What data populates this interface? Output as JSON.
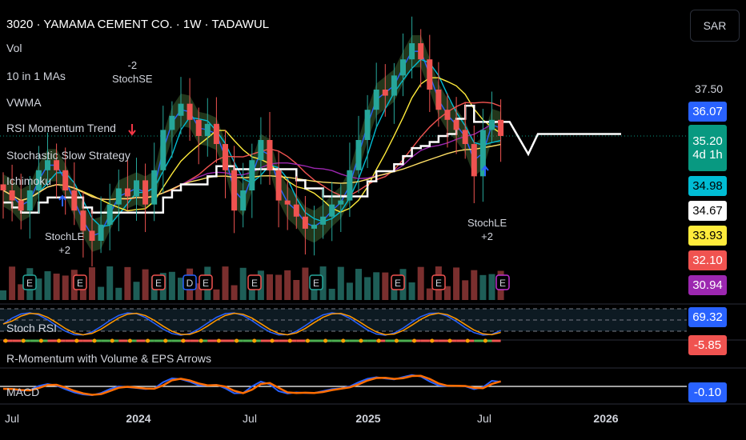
{
  "header": {
    "title": "3020 · YAMAMA CEMENT CO. · 1W · TADAWUL",
    "currency_button": "SAR"
  },
  "legend": [
    "Vol",
    "10 in 1 MAs",
    "VWMA",
    "RSI Momentum Trend",
    "Stochastic Slow Strategy",
    "Ichimoku"
  ],
  "panes": {
    "stoch_rsi": "Stoch RSI",
    "momentum": "R-Momentum with Volume & EPS Arrows",
    "macd": "MACD"
  },
  "signals": [
    {
      "top": "-2",
      "bottom": "StochSE"
    },
    {
      "top": "StochLE",
      "bottom": "+2"
    },
    {
      "top": "StochLE",
      "bottom": "+2"
    }
  ],
  "price_tags": [
    {
      "value": "36.07",
      "color": "#2962ff",
      "text": "#fff"
    },
    {
      "value": "35.20",
      "sub": "4d 1h",
      "color": "#089981",
      "text": "#fff"
    },
    {
      "value": "34.98",
      "color": "#00bcd4",
      "text": "#000"
    },
    {
      "value": "34.67",
      "color": "#ffffff",
      "text": "#000"
    },
    {
      "value": "33.93",
      "color": "#ffeb3b",
      "text": "#000"
    },
    {
      "value": "32.10",
      "color": "#f05350",
      "text": "#fff"
    },
    {
      "value": "30.94",
      "color": "#9c27b0",
      "text": "#fff"
    },
    {
      "value": "69.32",
      "color": "#2962ff",
      "text": "#fff"
    },
    {
      "value": "-5.85",
      "color": "#f05350",
      "text": "#fff"
    },
    {
      "value": "-0.10",
      "color": "#2962ff",
      "text": "#fff"
    }
  ],
  "chart_data": {
    "type": "candlestick",
    "title": "3020 · YAMAMA CEMENT CO. · 1W · TADAWUL",
    "y_axis_label_visible": "37.50",
    "ylim": [
      28.6,
      42.0
    ],
    "x_ticks": [
      "Jul",
      "2024",
      "Jul",
      "2025",
      "Jul",
      "2026"
    ],
    "closes": [
      32.5,
      32.0,
      31.5,
      32.5,
      33.5,
      34.0,
      33.5,
      32.5,
      31.5,
      30.5,
      30.0,
      30.8,
      31.8,
      32.6,
      32.2,
      33.0,
      31.8,
      33.5,
      35.5,
      36.2,
      36.8,
      36.0,
      35.2,
      35.8,
      34.8,
      33.5,
      31.5,
      32.5,
      34.0,
      35.0,
      33.5,
      32.0,
      31.8,
      31.2,
      30.6,
      30.8,
      31.2,
      31.8,
      32.0,
      33.5,
      35.0,
      36.5,
      37.5,
      37.2,
      38.2,
      39.0,
      39.8,
      39.0,
      37.5,
      36.5,
      36.0,
      35.5,
      34.8,
      33.2,
      35.5,
      36.0,
      35.2
    ],
    "last_price": 35.2,
    "earnings_markers": [
      "E",
      "E",
      "E",
      "D",
      "E",
      "E",
      "E",
      "E",
      "E",
      "E"
    ],
    "colors": {
      "up": "#26a69a",
      "down": "#ef5350"
    }
  }
}
